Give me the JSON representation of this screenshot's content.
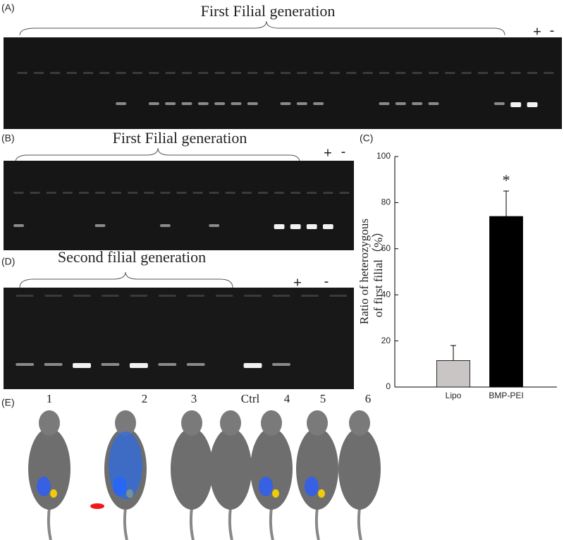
{
  "panels": {
    "A": {
      "label": "(A)",
      "title": "First Filial generation",
      "plus": "+",
      "minus": "-"
    },
    "B": {
      "label": "(B)",
      "title": "First Filial generation",
      "plus": "+",
      "minus": "-"
    },
    "D": {
      "label": "(D)",
      "title": "Second filial generation",
      "plus": "+",
      "minus": "-"
    },
    "E": {
      "label": "(E)",
      "lanes": [
        "1",
        "2",
        "3",
        "Ctrl",
        "4",
        "5",
        "6"
      ]
    }
  },
  "chart_data": {
    "type": "bar",
    "label": "(C)",
    "y_label": [
      "Ratio of heterozygous",
      "of first filial（%）"
    ],
    "categories": [
      "Lipo",
      "BMP-PEI"
    ],
    "values": [
      11.5,
      74
    ],
    "errors": [
      6.5,
      11
    ],
    "colors": [
      "#c9c5c5",
      "#000000"
    ],
    "ylim": [
      0,
      100
    ],
    "yticks": [
      0,
      20,
      40,
      60,
      80,
      100
    ],
    "annotations": [
      "*"
    ],
    "grid": false
  }
}
